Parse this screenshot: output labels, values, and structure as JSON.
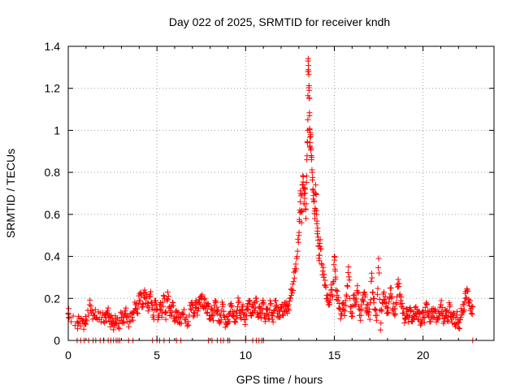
{
  "chart_data": {
    "type": "scatter",
    "title": "Day 022 of 2025, SRMTID for receiver kndh",
    "xlabel": "GPS time / hours",
    "ylabel": "SRMTID / TECUs",
    "xlim": [
      0,
      24
    ],
    "ylim": [
      0,
      1.4
    ],
    "xticks": [
      0,
      5,
      10,
      15,
      20
    ],
    "xtick_labels": [
      "0",
      "5",
      "10",
      "15",
      "20"
    ],
    "yticks": [
      0,
      0.2,
      0.4,
      0.6,
      0.8,
      1.0,
      1.2,
      1.4
    ],
    "ytick_labels": [
      "0",
      "0.2",
      "0.4",
      "0.6",
      "0.8",
      "1",
      "1.2",
      "1.4"
    ],
    "grid": true,
    "marker": "+",
    "color": "#ff0000",
    "series": [
      {
        "name": "SRMTID",
        "points": [
          [
            0.0,
            0.13
          ],
          [
            0.05,
            0.11
          ],
          [
            0.5,
            0.09
          ],
          [
            0.6,
            0.08
          ],
          [
            0.8,
            0.09
          ],
          [
            0.95,
            0.08
          ],
          [
            1.0,
            0.1
          ],
          [
            1.2,
            0.17
          ],
          [
            1.3,
            0.13
          ],
          [
            1.45,
            0.12
          ],
          [
            1.6,
            0.11
          ],
          [
            1.8,
            0.13
          ],
          [
            2.0,
            0.09
          ],
          [
            2.1,
            0.11
          ],
          [
            2.2,
            0.14
          ],
          [
            2.3,
            0.12
          ],
          [
            2.4,
            0.09
          ],
          [
            2.5,
            0.08
          ],
          [
            2.6,
            0.07
          ],
          [
            2.7,
            0.1
          ],
          [
            2.85,
            0.08
          ],
          [
            3.0,
            0.11
          ],
          [
            3.1,
            0.09
          ],
          [
            3.2,
            0.14
          ],
          [
            3.3,
            0.12
          ],
          [
            3.45,
            0.09
          ],
          [
            3.6,
            0.11
          ],
          [
            3.7,
            0.13
          ],
          [
            3.8,
            0.17
          ],
          [
            3.9,
            0.15
          ],
          [
            4.0,
            0.19
          ],
          [
            4.1,
            0.22
          ],
          [
            4.2,
            0.16
          ],
          [
            4.3,
            0.24
          ],
          [
            4.4,
            0.2
          ],
          [
            4.5,
            0.14
          ],
          [
            4.6,
            0.22
          ],
          [
            4.7,
            0.18
          ],
          [
            4.8,
            0.12
          ],
          [
            4.9,
            0.17
          ],
          [
            5.0,
            0.15
          ],
          [
            5.1,
            0.11
          ],
          [
            5.2,
            0.18
          ],
          [
            5.3,
            0.13
          ],
          [
            5.4,
            0.21
          ],
          [
            5.5,
            0.1
          ],
          [
            5.6,
            0.23
          ],
          [
            5.7,
            0.16
          ],
          [
            5.8,
            0.12
          ],
          [
            5.9,
            0.18
          ],
          [
            6.0,
            0.09
          ],
          [
            6.1,
            0.14
          ],
          [
            6.2,
            0.11
          ],
          [
            6.3,
            0.08
          ],
          [
            6.45,
            0.13
          ],
          [
            6.6,
            0.1
          ],
          [
            6.75,
            0.09
          ],
          [
            6.9,
            0.15
          ],
          [
            7.0,
            0.17
          ],
          [
            7.1,
            0.12
          ],
          [
            7.2,
            0.19
          ],
          [
            7.3,
            0.14
          ],
          [
            7.4,
            0.18
          ],
          [
            7.5,
            0.21
          ],
          [
            7.6,
            0.16
          ],
          [
            7.7,
            0.2
          ],
          [
            7.8,
            0.13
          ],
          [
            7.9,
            0.17
          ],
          [
            8.0,
            0.1
          ],
          [
            8.1,
            0.15
          ],
          [
            8.2,
            0.12
          ],
          [
            8.3,
            0.18
          ],
          [
            8.4,
            0.14
          ],
          [
            8.5,
            0.09
          ],
          [
            8.6,
            0.12
          ],
          [
            8.7,
            0.16
          ],
          [
            8.8,
            0.11
          ],
          [
            8.9,
            0.08
          ],
          [
            9.0,
            0.1
          ],
          [
            9.1,
            0.13
          ],
          [
            9.2,
            0.16
          ],
          [
            9.3,
            0.12
          ],
          [
            9.4,
            0.09
          ],
          [
            9.5,
            0.14
          ],
          [
            9.6,
            0.18
          ],
          [
            9.7,
            0.11
          ],
          [
            9.8,
            0.16
          ],
          [
            9.9,
            0.13
          ],
          [
            10.0,
            0.1
          ],
          [
            10.1,
            0.15
          ],
          [
            10.2,
            0.19
          ],
          [
            10.3,
            0.12
          ],
          [
            10.4,
            0.17
          ],
          [
            10.5,
            0.14
          ],
          [
            10.6,
            0.2
          ],
          [
            10.7,
            0.11
          ],
          [
            10.8,
            0.16
          ],
          [
            10.9,
            0.13
          ],
          [
            11.0,
            0.18
          ],
          [
            11.1,
            0.09
          ],
          [
            11.2,
            0.15
          ],
          [
            11.3,
            0.12
          ],
          [
            11.4,
            0.17
          ],
          [
            11.5,
            0.1
          ],
          [
            11.6,
            0.14
          ],
          [
            11.7,
            0.19
          ],
          [
            11.8,
            0.13
          ],
          [
            11.9,
            0.11
          ],
          [
            12.0,
            0.16
          ],
          [
            12.1,
            0.12
          ],
          [
            12.2,
            0.18
          ],
          [
            12.3,
            0.14
          ],
          [
            12.4,
            0.15
          ],
          [
            12.5,
            0.2
          ],
          [
            12.6,
            0.24
          ],
          [
            12.7,
            0.28
          ],
          [
            12.8,
            0.33
          ],
          [
            12.9,
            0.4
          ],
          [
            13.0,
            0.5
          ],
          [
            13.05,
            0.62
          ],
          [
            13.1,
            0.7
          ],
          [
            13.15,
            0.56
          ],
          [
            13.2,
            0.74
          ],
          [
            13.25,
            0.78
          ],
          [
            13.3,
            0.65
          ],
          [
            13.35,
            0.72
          ],
          [
            13.4,
            0.58
          ],
          [
            13.45,
            0.86
          ],
          [
            13.5,
            1.0
          ],
          [
            13.52,
            1.33
          ],
          [
            13.55,
            1.28
          ],
          [
            13.58,
            1.19
          ],
          [
            13.6,
            1.07
          ],
          [
            13.62,
            0.92
          ],
          [
            13.65,
            0.98
          ],
          [
            13.7,
            0.88
          ],
          [
            13.75,
            0.8
          ],
          [
            13.8,
            0.72
          ],
          [
            13.85,
            0.66
          ],
          [
            13.9,
            0.58
          ],
          [
            13.95,
            0.74
          ],
          [
            14.0,
            0.6
          ],
          [
            14.05,
            0.52
          ],
          [
            14.1,
            0.45
          ],
          [
            14.15,
            0.38
          ],
          [
            14.2,
            0.48
          ],
          [
            14.3,
            0.36
          ],
          [
            14.4,
            0.3
          ],
          [
            14.5,
            0.26
          ],
          [
            14.6,
            0.2
          ],
          [
            14.7,
            0.18
          ],
          [
            14.8,
            0.24
          ],
          [
            14.9,
            0.21
          ],
          [
            15.0,
            0.4
          ],
          [
            15.05,
            0.33
          ],
          [
            15.1,
            0.24
          ],
          [
            15.2,
            0.19
          ],
          [
            15.3,
            0.15
          ],
          [
            15.4,
            0.12
          ],
          [
            15.5,
            0.18
          ],
          [
            15.6,
            0.14
          ],
          [
            15.7,
            0.21
          ],
          [
            15.8,
            0.35
          ],
          [
            15.9,
            0.16
          ],
          [
            16.0,
            0.13
          ],
          [
            16.1,
            0.2
          ],
          [
            16.2,
            0.17
          ],
          [
            16.3,
            0.26
          ],
          [
            16.4,
            0.15
          ],
          [
            16.5,
            0.12
          ],
          [
            16.6,
            0.19
          ],
          [
            16.7,
            0.23
          ],
          [
            16.8,
            0.14
          ],
          [
            16.9,
            0.17
          ],
          [
            17.0,
            0.1
          ],
          [
            17.1,
            0.32
          ],
          [
            17.2,
            0.2
          ],
          [
            17.3,
            0.15
          ],
          [
            17.4,
            0.12
          ],
          [
            17.5,
            0.39
          ],
          [
            17.6,
            0.05
          ],
          [
            17.7,
            0.18
          ],
          [
            17.8,
            0.23
          ],
          [
            17.9,
            0.16
          ],
          [
            18.0,
            0.13
          ],
          [
            18.1,
            0.2
          ],
          [
            18.2,
            0.25
          ],
          [
            18.3,
            0.15
          ],
          [
            18.4,
            0.12
          ],
          [
            18.5,
            0.18
          ],
          [
            18.6,
            0.29
          ],
          [
            18.7,
            0.22
          ],
          [
            18.8,
            0.16
          ],
          [
            18.9,
            0.13
          ],
          [
            19.0,
            0.1
          ],
          [
            19.1,
            0.15
          ],
          [
            19.2,
            0.11
          ],
          [
            19.3,
            0.14
          ],
          [
            19.4,
            0.09
          ],
          [
            19.5,
            0.12
          ],
          [
            19.6,
            0.16
          ],
          [
            19.7,
            0.1
          ],
          [
            19.8,
            0.13
          ],
          [
            19.9,
            0.08
          ],
          [
            20.0,
            0.14
          ],
          [
            20.1,
            0.11
          ],
          [
            20.2,
            0.17
          ],
          [
            20.3,
            0.12
          ],
          [
            20.4,
            0.09
          ],
          [
            20.5,
            0.15
          ],
          [
            20.6,
            0.11
          ],
          [
            20.7,
            0.14
          ],
          [
            20.8,
            0.1
          ],
          [
            20.9,
            0.13
          ],
          [
            21.0,
            0.17
          ],
          [
            21.1,
            0.12
          ],
          [
            21.2,
            0.09
          ],
          [
            21.3,
            0.14
          ],
          [
            21.4,
            0.11
          ],
          [
            21.5,
            0.16
          ],
          [
            21.6,
            0.1
          ],
          [
            21.7,
            0.13
          ],
          [
            21.8,
            0.08
          ],
          [
            21.9,
            0.12
          ],
          [
            22.0,
            0.06
          ],
          [
            22.1,
            0.1
          ],
          [
            22.2,
            0.14
          ],
          [
            22.3,
            0.17
          ],
          [
            22.4,
            0.2
          ],
          [
            22.5,
            0.24
          ],
          [
            22.6,
            0.18
          ],
          [
            22.7,
            0.15
          ],
          [
            22.8,
            0.16
          ]
        ],
        "zero_points": [
          0.5,
          0.7,
          0.9,
          1.15,
          1.4,
          1.55,
          1.8,
          2.0,
          2.25,
          2.4,
          2.55,
          2.7,
          2.8,
          2.9,
          3.4,
          3.65,
          4.75,
          5.0,
          5.15,
          5.4,
          5.7,
          6.1,
          6.35,
          7.9,
          8.1,
          8.4,
          8.6,
          8.75,
          9.0,
          9.1,
          10.0,
          10.4,
          10.6,
          10.75,
          10.9,
          11.0,
          22.8
        ]
      }
    ]
  }
}
